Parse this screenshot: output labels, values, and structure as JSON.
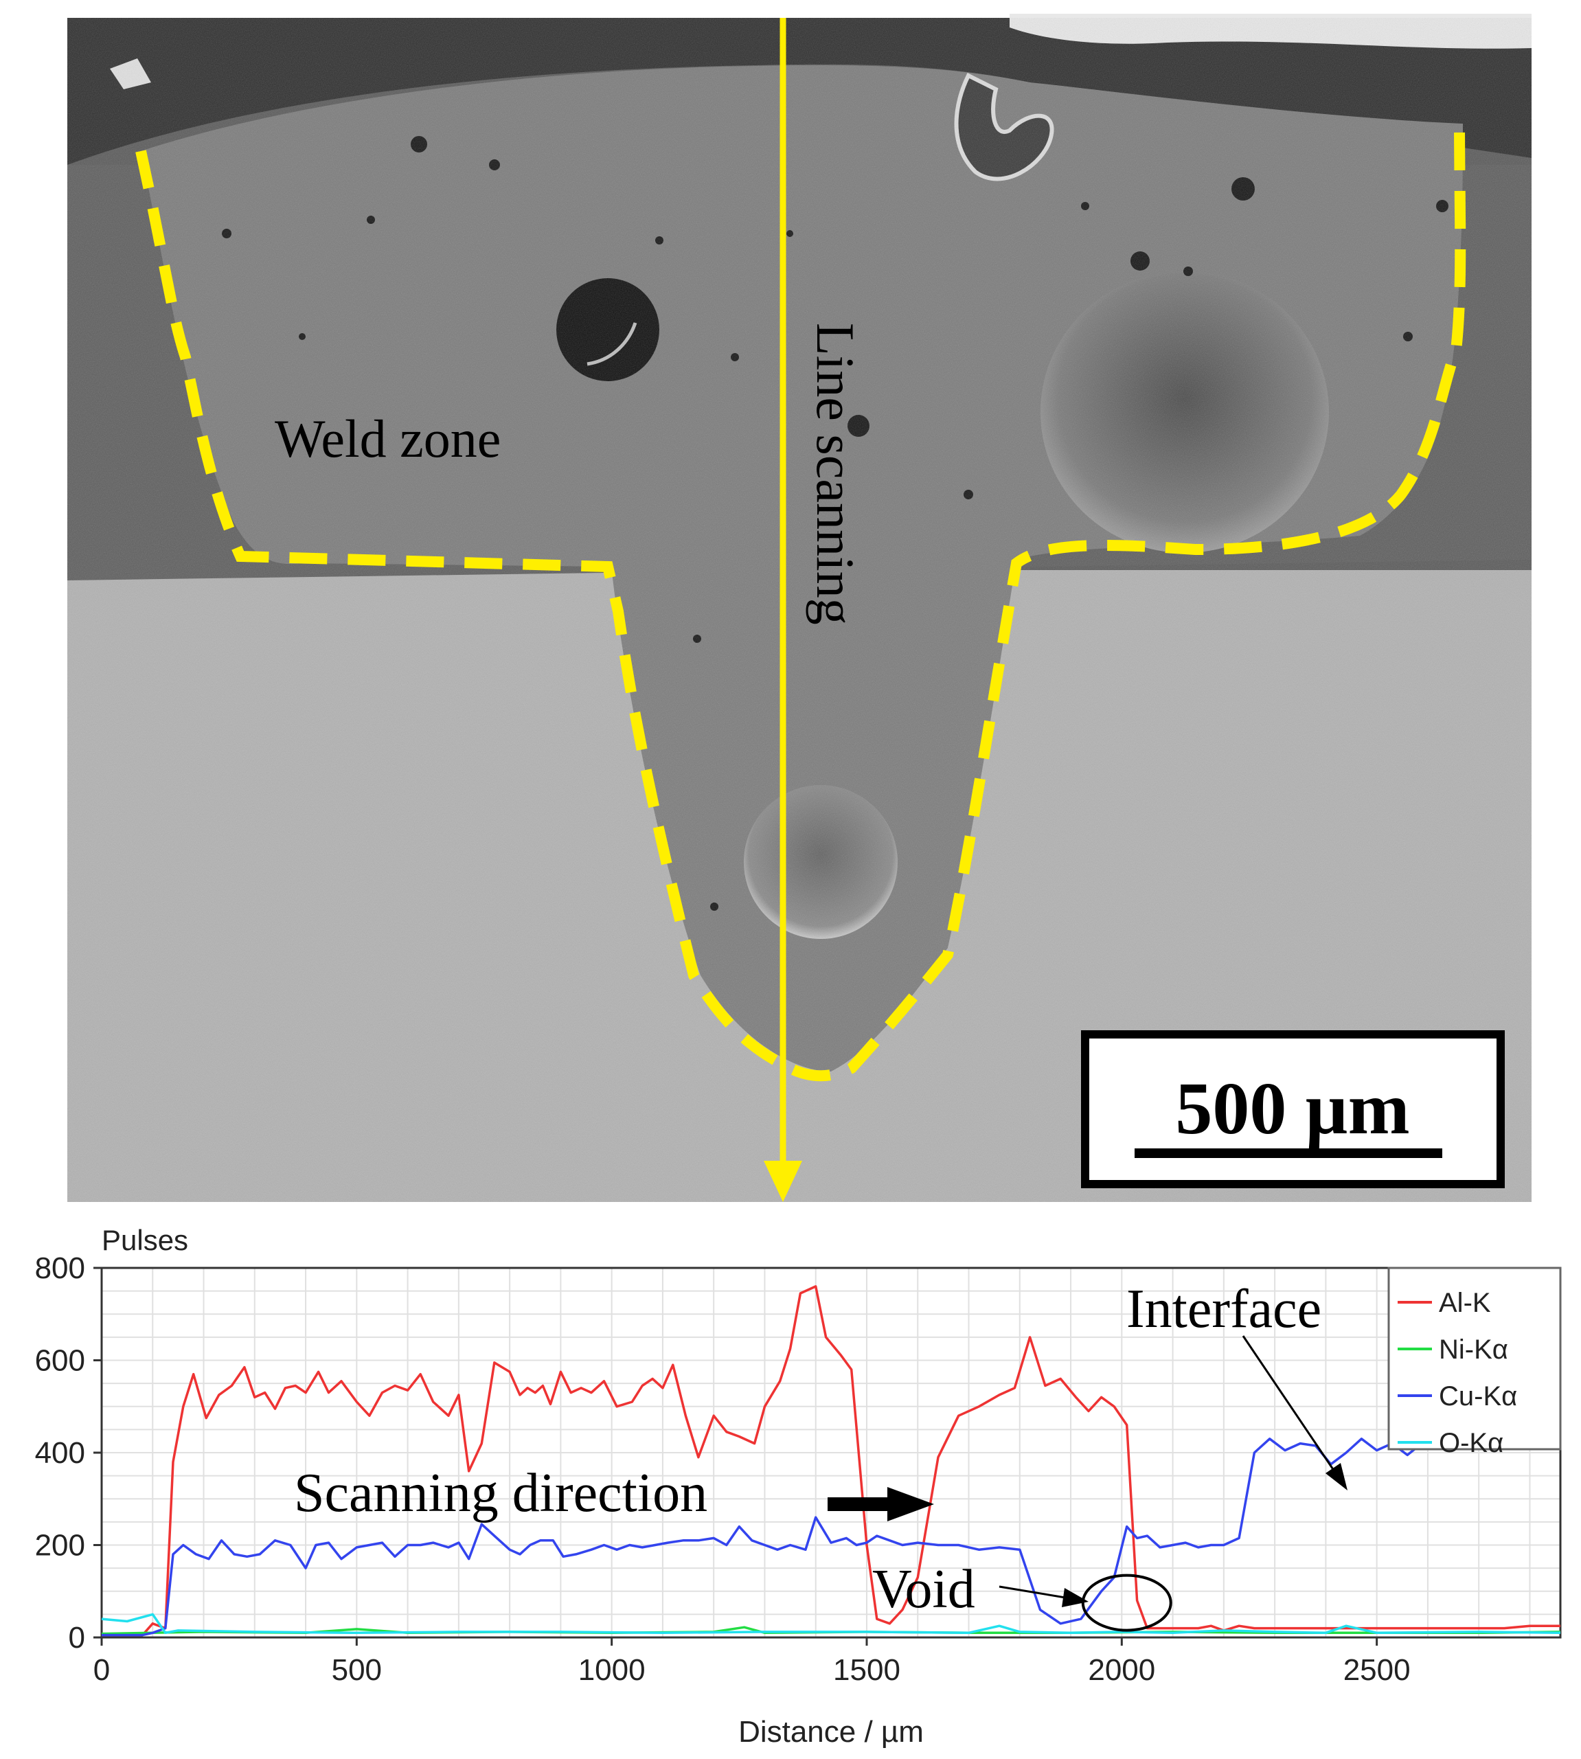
{
  "micrograph": {
    "labels": {
      "weld_zone": "Weld zone",
      "line_scanning": "Line scanning",
      "scale_bar": "500 µm"
    },
    "colors": {
      "outline": "#ffef00",
      "scan_line": "#ffef00"
    }
  },
  "chart_data": {
    "type": "line",
    "title": "",
    "ylabel": "Pulses",
    "xlabel": "Distance / µm",
    "xlim": [
      0,
      2860
    ],
    "ylim": [
      0,
      800
    ],
    "xticks": [
      0,
      500,
      1000,
      1500,
      2000,
      2500
    ],
    "yticks": [
      0,
      200,
      400,
      600,
      800
    ],
    "grid": true,
    "legend_position": "top-right",
    "annotations": {
      "interface": "Interface",
      "scanning_direction": "Scanning direction",
      "void": "Void"
    },
    "series": [
      {
        "name": "Al-K",
        "color": "#ee3333",
        "x": [
          0,
          50,
          80,
          100,
          125,
          140,
          160,
          180,
          205,
          230,
          255,
          280,
          300,
          320,
          340,
          360,
          380,
          400,
          425,
          445,
          470,
          500,
          525,
          550,
          575,
          600,
          625,
          650,
          680,
          700,
          720,
          745,
          770,
          800,
          820,
          835,
          850,
          865,
          880,
          900,
          920,
          940,
          960,
          985,
          1010,
          1040,
          1060,
          1080,
          1100,
          1120,
          1145,
          1170,
          1200,
          1225,
          1250,
          1280,
          1300,
          1330,
          1350,
          1370,
          1400,
          1420,
          1450,
          1470,
          1500,
          1520,
          1545,
          1570,
          1600,
          1640,
          1680,
          1720,
          1760,
          1790,
          1820,
          1850,
          1880,
          1910,
          1935,
          1960,
          1985,
          2010,
          2030,
          2050,
          2075,
          2100,
          2125,
          2150,
          2175,
          2200,
          2230,
          2260,
          2280,
          2300,
          2330,
          2350,
          2370,
          2390,
          2405,
          2425,
          2445,
          2470,
          2500,
          2550,
          2600,
          2650,
          2700,
          2750,
          2800,
          2860
        ],
        "y": [
          5,
          5,
          5,
          30,
          20,
          380,
          500,
          570,
          475,
          525,
          545,
          585,
          520,
          530,
          495,
          540,
          545,
          530,
          575,
          530,
          555,
          510,
          480,
          530,
          545,
          535,
          570,
          510,
          480,
          525,
          360,
          420,
          595,
          575,
          525,
          540,
          530,
          545,
          505,
          575,
          530,
          540,
          530,
          555,
          500,
          510,
          545,
          560,
          540,
          590,
          480,
          390,
          480,
          445,
          435,
          420,
          500,
          555,
          625,
          745,
          760,
          650,
          610,
          580,
          200,
          40,
          30,
          60,
          130,
          390,
          480,
          500,
          525,
          540,
          650,
          545,
          560,
          520,
          490,
          520,
          500,
          460,
          80,
          20,
          20,
          20,
          20,
          20,
          25,
          15,
          25,
          20,
          20,
          20,
          20,
          20,
          20,
          20,
          20,
          20,
          20,
          20,
          20,
          20,
          20,
          20,
          20,
          20,
          25,
          25
        ]
      },
      {
        "name": "Ni-Kα",
        "color": "#22dd44",
        "x": [
          0,
          200,
          400,
          500,
          600,
          800,
          1000,
          1200,
          1260,
          1300,
          1500,
          1700,
          1900,
          2100,
          2300,
          2500,
          2700,
          2860
        ],
        "y": [
          8,
          12,
          10,
          18,
          10,
          12,
          10,
          12,
          22,
          10,
          12,
          10,
          10,
          12,
          10,
          10,
          10,
          12
        ]
      },
      {
        "name": "Cu-Kα",
        "color": "#3344ee",
        "x": [
          0,
          80,
          100,
          125,
          140,
          160,
          185,
          210,
          235,
          260,
          285,
          310,
          340,
          370,
          400,
          420,
          445,
          470,
          500,
          525,
          550,
          575,
          600,
          625,
          650,
          680,
          700,
          720,
          745,
          770,
          800,
          820,
          840,
          860,
          885,
          905,
          930,
          960,
          985,
          1010,
          1035,
          1060,
          1085,
          1110,
          1140,
          1170,
          1200,
          1225,
          1250,
          1275,
          1300,
          1325,
          1350,
          1380,
          1400,
          1430,
          1460,
          1480,
          1500,
          1520,
          1545,
          1570,
          1600,
          1640,
          1680,
          1720,
          1760,
          1800,
          1840,
          1880,
          1920,
          1960,
          1985,
          2010,
          2030,
          2050,
          2075,
          2100,
          2125,
          2150,
          2175,
          2200,
          2230,
          2260,
          2290,
          2320,
          2350,
          2380,
          2410,
          2440,
          2470,
          2500,
          2530,
          2560,
          2600,
          2640,
          2680,
          2720,
          2760,
          2800,
          2860
        ],
        "y": [
          5,
          5,
          10,
          20,
          180,
          200,
          180,
          170,
          210,
          180,
          175,
          180,
          210,
          200,
          150,
          200,
          205,
          170,
          195,
          200,
          205,
          175,
          200,
          200,
          205,
          195,
          205,
          170,
          245,
          220,
          190,
          180,
          200,
          210,
          210,
          175,
          180,
          190,
          200,
          190,
          200,
          195,
          200,
          205,
          210,
          210,
          215,
          200,
          240,
          210,
          200,
          190,
          200,
          190,
          260,
          205,
          215,
          200,
          205,
          220,
          210,
          200,
          205,
          200,
          200,
          190,
          195,
          190,
          60,
          30,
          40,
          100,
          130,
          240,
          215,
          220,
          195,
          200,
          205,
          195,
          200,
          200,
          215,
          400,
          430,
          405,
          420,
          415,
          375,
          400,
          430,
          405,
          420,
          395,
          430,
          420,
          430,
          425,
          430,
          420,
          410
        ]
      },
      {
        "name": "O-Kα",
        "color": "#22e0ee",
        "x": [
          0,
          50,
          100,
          125,
          150,
          300,
          500,
          700,
          900,
          1100,
          1300,
          1500,
          1700,
          1760,
          1800,
          1900,
          2000,
          2100,
          2200,
          2300,
          2400,
          2440,
          2500,
          2700,
          2860
        ],
        "y": [
          40,
          35,
          50,
          10,
          15,
          12,
          10,
          12,
          12,
          10,
          12,
          12,
          10,
          25,
          12,
          10,
          12,
          10,
          15,
          12,
          10,
          25,
          10,
          12,
          10
        ]
      }
    ]
  }
}
